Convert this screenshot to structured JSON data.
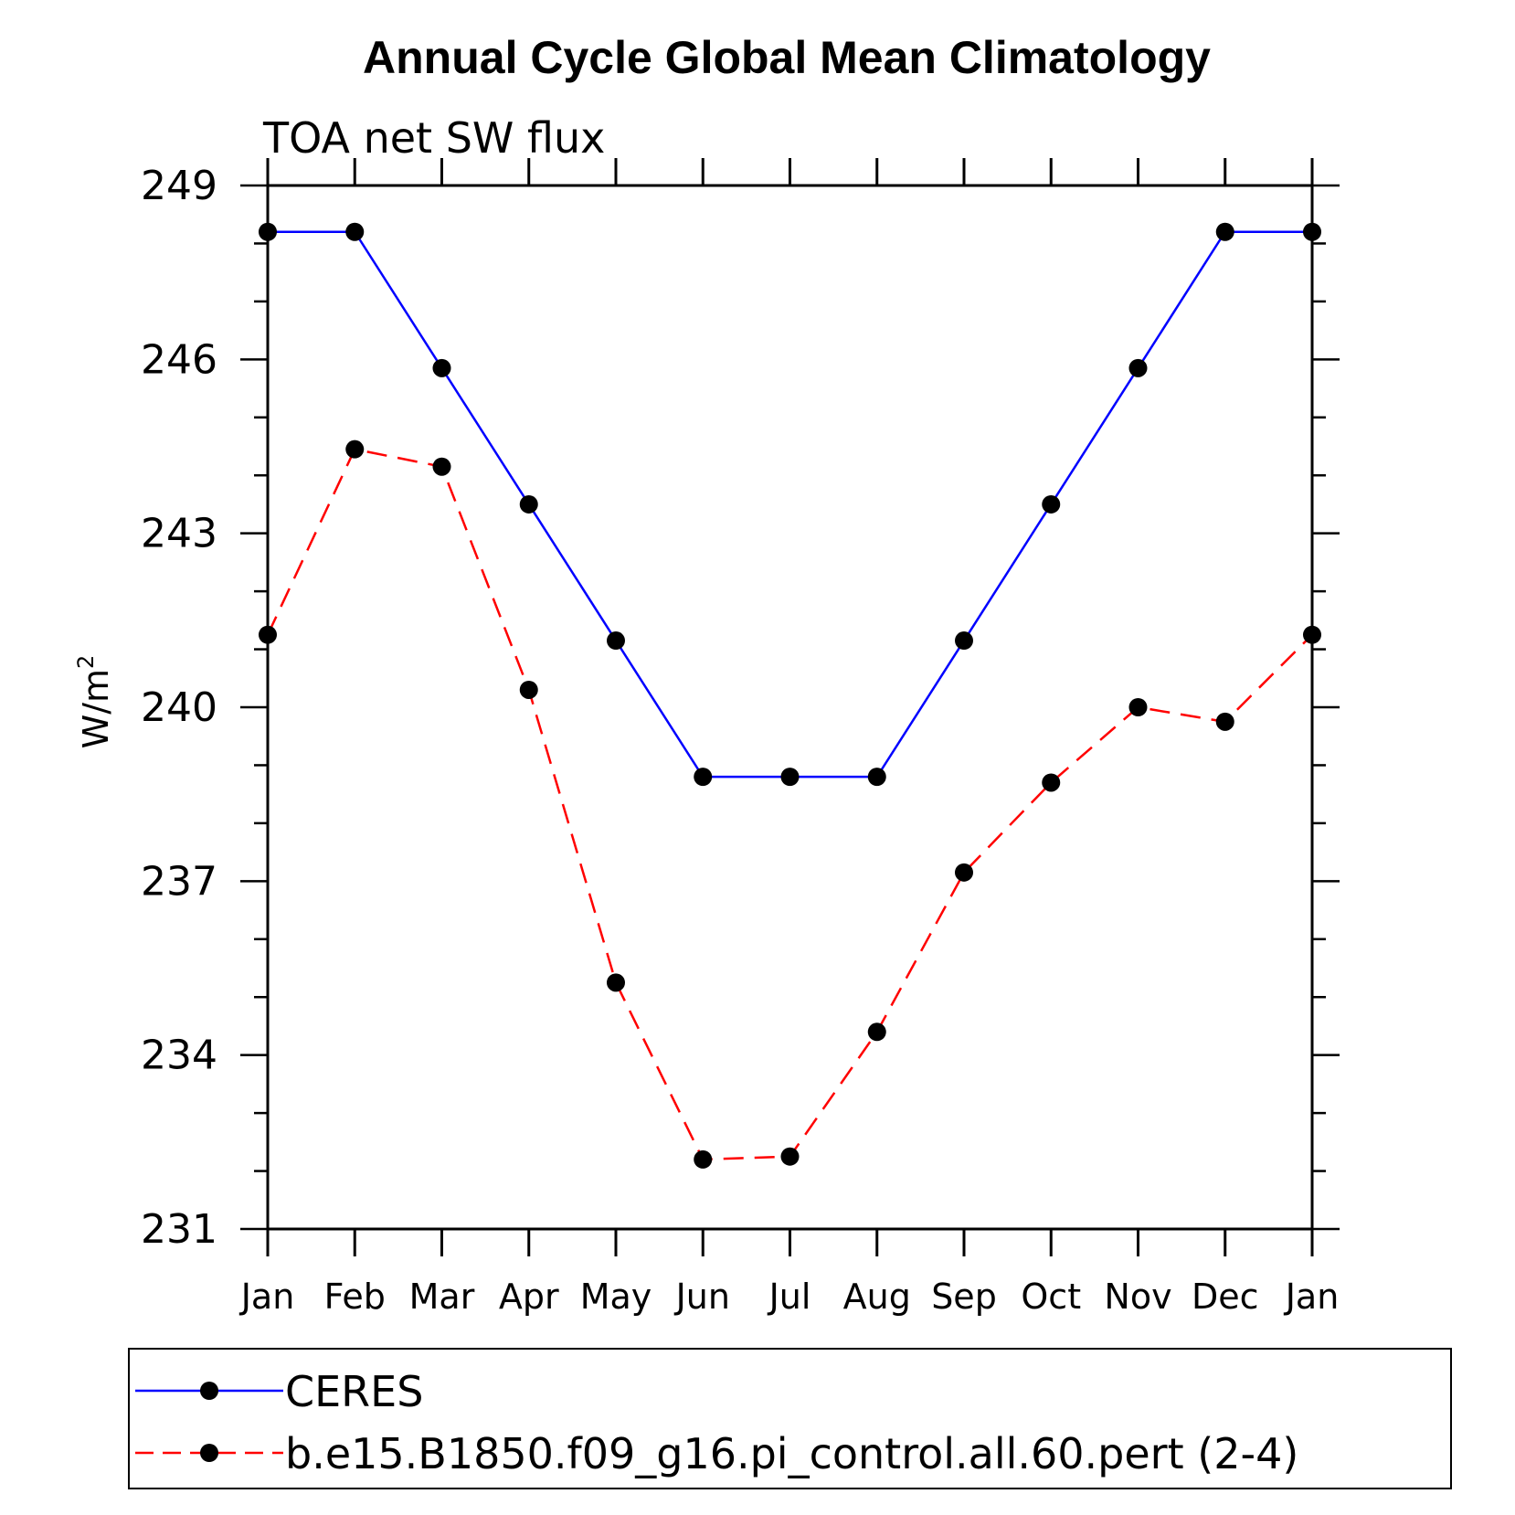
{
  "chart_data": {
    "type": "line",
    "title": "Annual Cycle Global Mean Climatology",
    "subtitle": "TOA net SW flux",
    "xlabel": "",
    "ylabel": "W/m",
    "ylabel_sup": "2",
    "categories": [
      "Jan",
      "Feb",
      "Mar",
      "Apr",
      "May",
      "Jun",
      "Jul",
      "Aug",
      "Sep",
      "Oct",
      "Nov",
      "Dec",
      "Jan"
    ],
    "ylim": [
      231,
      249
    ],
    "yticks": [
      "249",
      "246",
      "243",
      "240",
      "237",
      "234",
      "231"
    ],
    "series": [
      {
        "name": "CERES",
        "color": "#0000ff",
        "dash": "solid",
        "values": [
          248.2,
          248.2,
          245.85,
          243.5,
          241.15,
          238.8,
          238.8,
          238.8,
          241.15,
          243.5,
          245.85,
          248.2,
          248.2
        ]
      },
      {
        "name": "b.e15.B1850.f09_g16.pi_control.all.60.pert (2-4)",
        "color": "#ff0000",
        "dash": "dashed",
        "values": [
          241.25,
          244.45,
          244.15,
          240.3,
          235.25,
          232.2,
          232.25,
          234.4,
          237.15,
          238.7,
          240.0,
          239.75,
          241.25
        ]
      }
    ]
  }
}
